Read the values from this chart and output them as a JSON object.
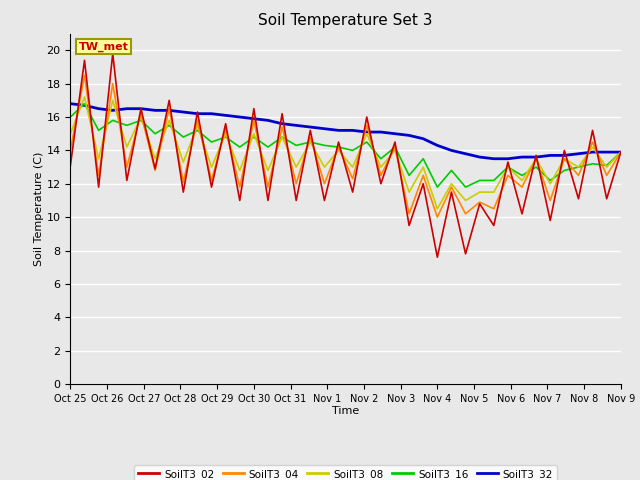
{
  "title": "Soil Temperature Set 3",
  "xlabel": "Time",
  "ylabel": "Soil Temperature (C)",
  "ylim": [
    0,
    21
  ],
  "yticks": [
    0,
    2,
    4,
    6,
    8,
    10,
    12,
    14,
    16,
    18,
    20
  ],
  "xtick_labels": [
    "Oct 25",
    "Oct 26",
    "Oct 27",
    "Oct 28",
    "Oct 29",
    "Oct 30",
    "Oct 31",
    "Nov 1",
    "Nov 2",
    "Nov 3",
    "Nov 4",
    "Nov 5",
    "Nov 6",
    "Nov 7",
    "Nov 8",
    "Nov 9"
  ],
  "background_color": "#e8e8e8",
  "annotation_text": "TW_met",
  "annotation_color": "#cc0000",
  "annotation_bg": "#ffff99",
  "annotation_border": "#999900",
  "series": {
    "SoilT3_02": {
      "color": "#cc0000",
      "values": [
        13.1,
        19.4,
        11.8,
        19.8,
        12.2,
        16.5,
        12.9,
        17.0,
        11.5,
        16.3,
        11.8,
        15.6,
        11.0,
        16.5,
        11.0,
        16.2,
        11.0,
        15.2,
        11.0,
        14.5,
        11.5,
        16.0,
        12.0,
        14.5,
        9.5,
        12.0,
        7.6,
        11.5,
        7.8,
        10.8,
        9.5,
        13.3,
        10.2,
        13.7,
        9.8,
        14.0,
        11.1,
        15.2,
        11.1,
        13.9
      ]
    },
    "SoilT3_04": {
      "color": "#ff8800",
      "values": [
        14.0,
        18.5,
        12.5,
        18.0,
        13.0,
        16.2,
        12.8,
        16.5,
        12.1,
        15.8,
        12.2,
        15.3,
        11.8,
        15.8,
        11.8,
        15.4,
        12.0,
        14.8,
        12.0,
        14.2,
        12.3,
        15.5,
        12.5,
        14.2,
        10.2,
        12.5,
        10.0,
        11.8,
        10.2,
        10.9,
        10.5,
        12.5,
        11.8,
        13.5,
        11.0,
        13.5,
        12.5,
        14.5,
        12.5,
        13.9
      ]
    },
    "SoilT3_08": {
      "color": "#cccc00",
      "values": [
        15.0,
        17.2,
        13.5,
        17.0,
        14.2,
        16.0,
        13.5,
        15.8,
        13.3,
        15.5,
        13.0,
        15.0,
        12.8,
        15.0,
        12.8,
        14.8,
        13.0,
        14.5,
        13.0,
        14.0,
        13.0,
        15.0,
        13.0,
        14.0,
        11.5,
        13.0,
        10.5,
        12.0,
        11.0,
        11.5,
        11.5,
        13.0,
        12.2,
        13.5,
        12.0,
        13.5,
        13.0,
        14.2,
        13.0,
        13.9
      ]
    },
    "SoilT3_16": {
      "color": "#00cc00",
      "values": [
        16.0,
        16.8,
        15.2,
        15.8,
        15.5,
        15.8,
        15.0,
        15.5,
        14.8,
        15.2,
        14.5,
        14.8,
        14.2,
        14.8,
        14.2,
        14.8,
        14.3,
        14.5,
        14.3,
        14.2,
        14.0,
        14.5,
        13.5,
        14.2,
        12.5,
        13.5,
        11.8,
        12.8,
        11.8,
        12.2,
        12.2,
        13.0,
        12.5,
        13.0,
        12.2,
        12.8,
        13.0,
        13.2,
        13.1,
        13.9
      ]
    },
    "SoilT3_32": {
      "color": "#0000cc",
      "values": [
        16.8,
        16.7,
        16.5,
        16.4,
        16.5,
        16.5,
        16.4,
        16.4,
        16.3,
        16.2,
        16.2,
        16.1,
        16.0,
        15.9,
        15.8,
        15.6,
        15.5,
        15.4,
        15.3,
        15.2,
        15.2,
        15.1,
        15.1,
        15.0,
        14.9,
        14.7,
        14.3,
        14.0,
        13.8,
        13.6,
        13.5,
        13.5,
        13.6,
        13.6,
        13.7,
        13.7,
        13.8,
        13.9,
        13.9,
        13.9
      ]
    }
  }
}
